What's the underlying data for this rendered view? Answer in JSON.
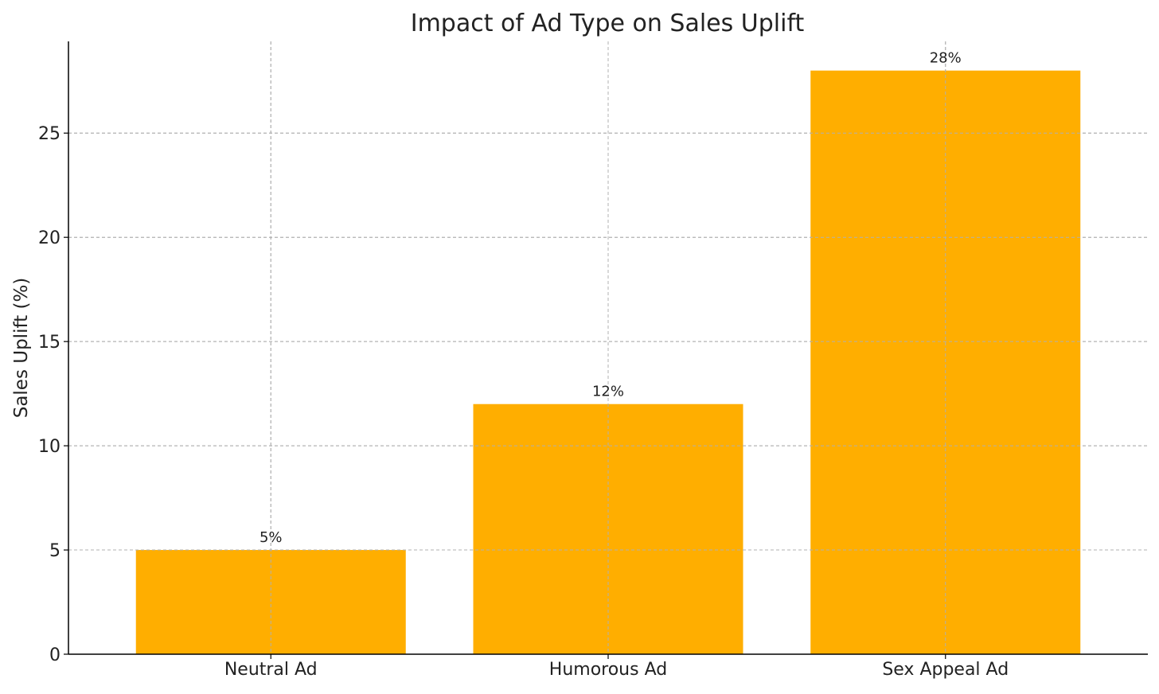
{
  "chart_data": {
    "type": "bar",
    "title": "Impact of Ad Type on Sales Uplift",
    "xlabel": "",
    "ylabel": "Sales Uplift (%)",
    "categories": [
      "Neutral Ad",
      "Humorous Ad",
      "Sex Appeal Ad"
    ],
    "values": [
      5,
      12,
      28
    ],
    "data_labels": [
      "5%",
      "12%",
      "28%"
    ],
    "ylim": [
      0,
      29.4
    ],
    "yticks": [
      0,
      5,
      10,
      15,
      20,
      25
    ],
    "grid": true,
    "bar_color": "#FFAE00"
  }
}
